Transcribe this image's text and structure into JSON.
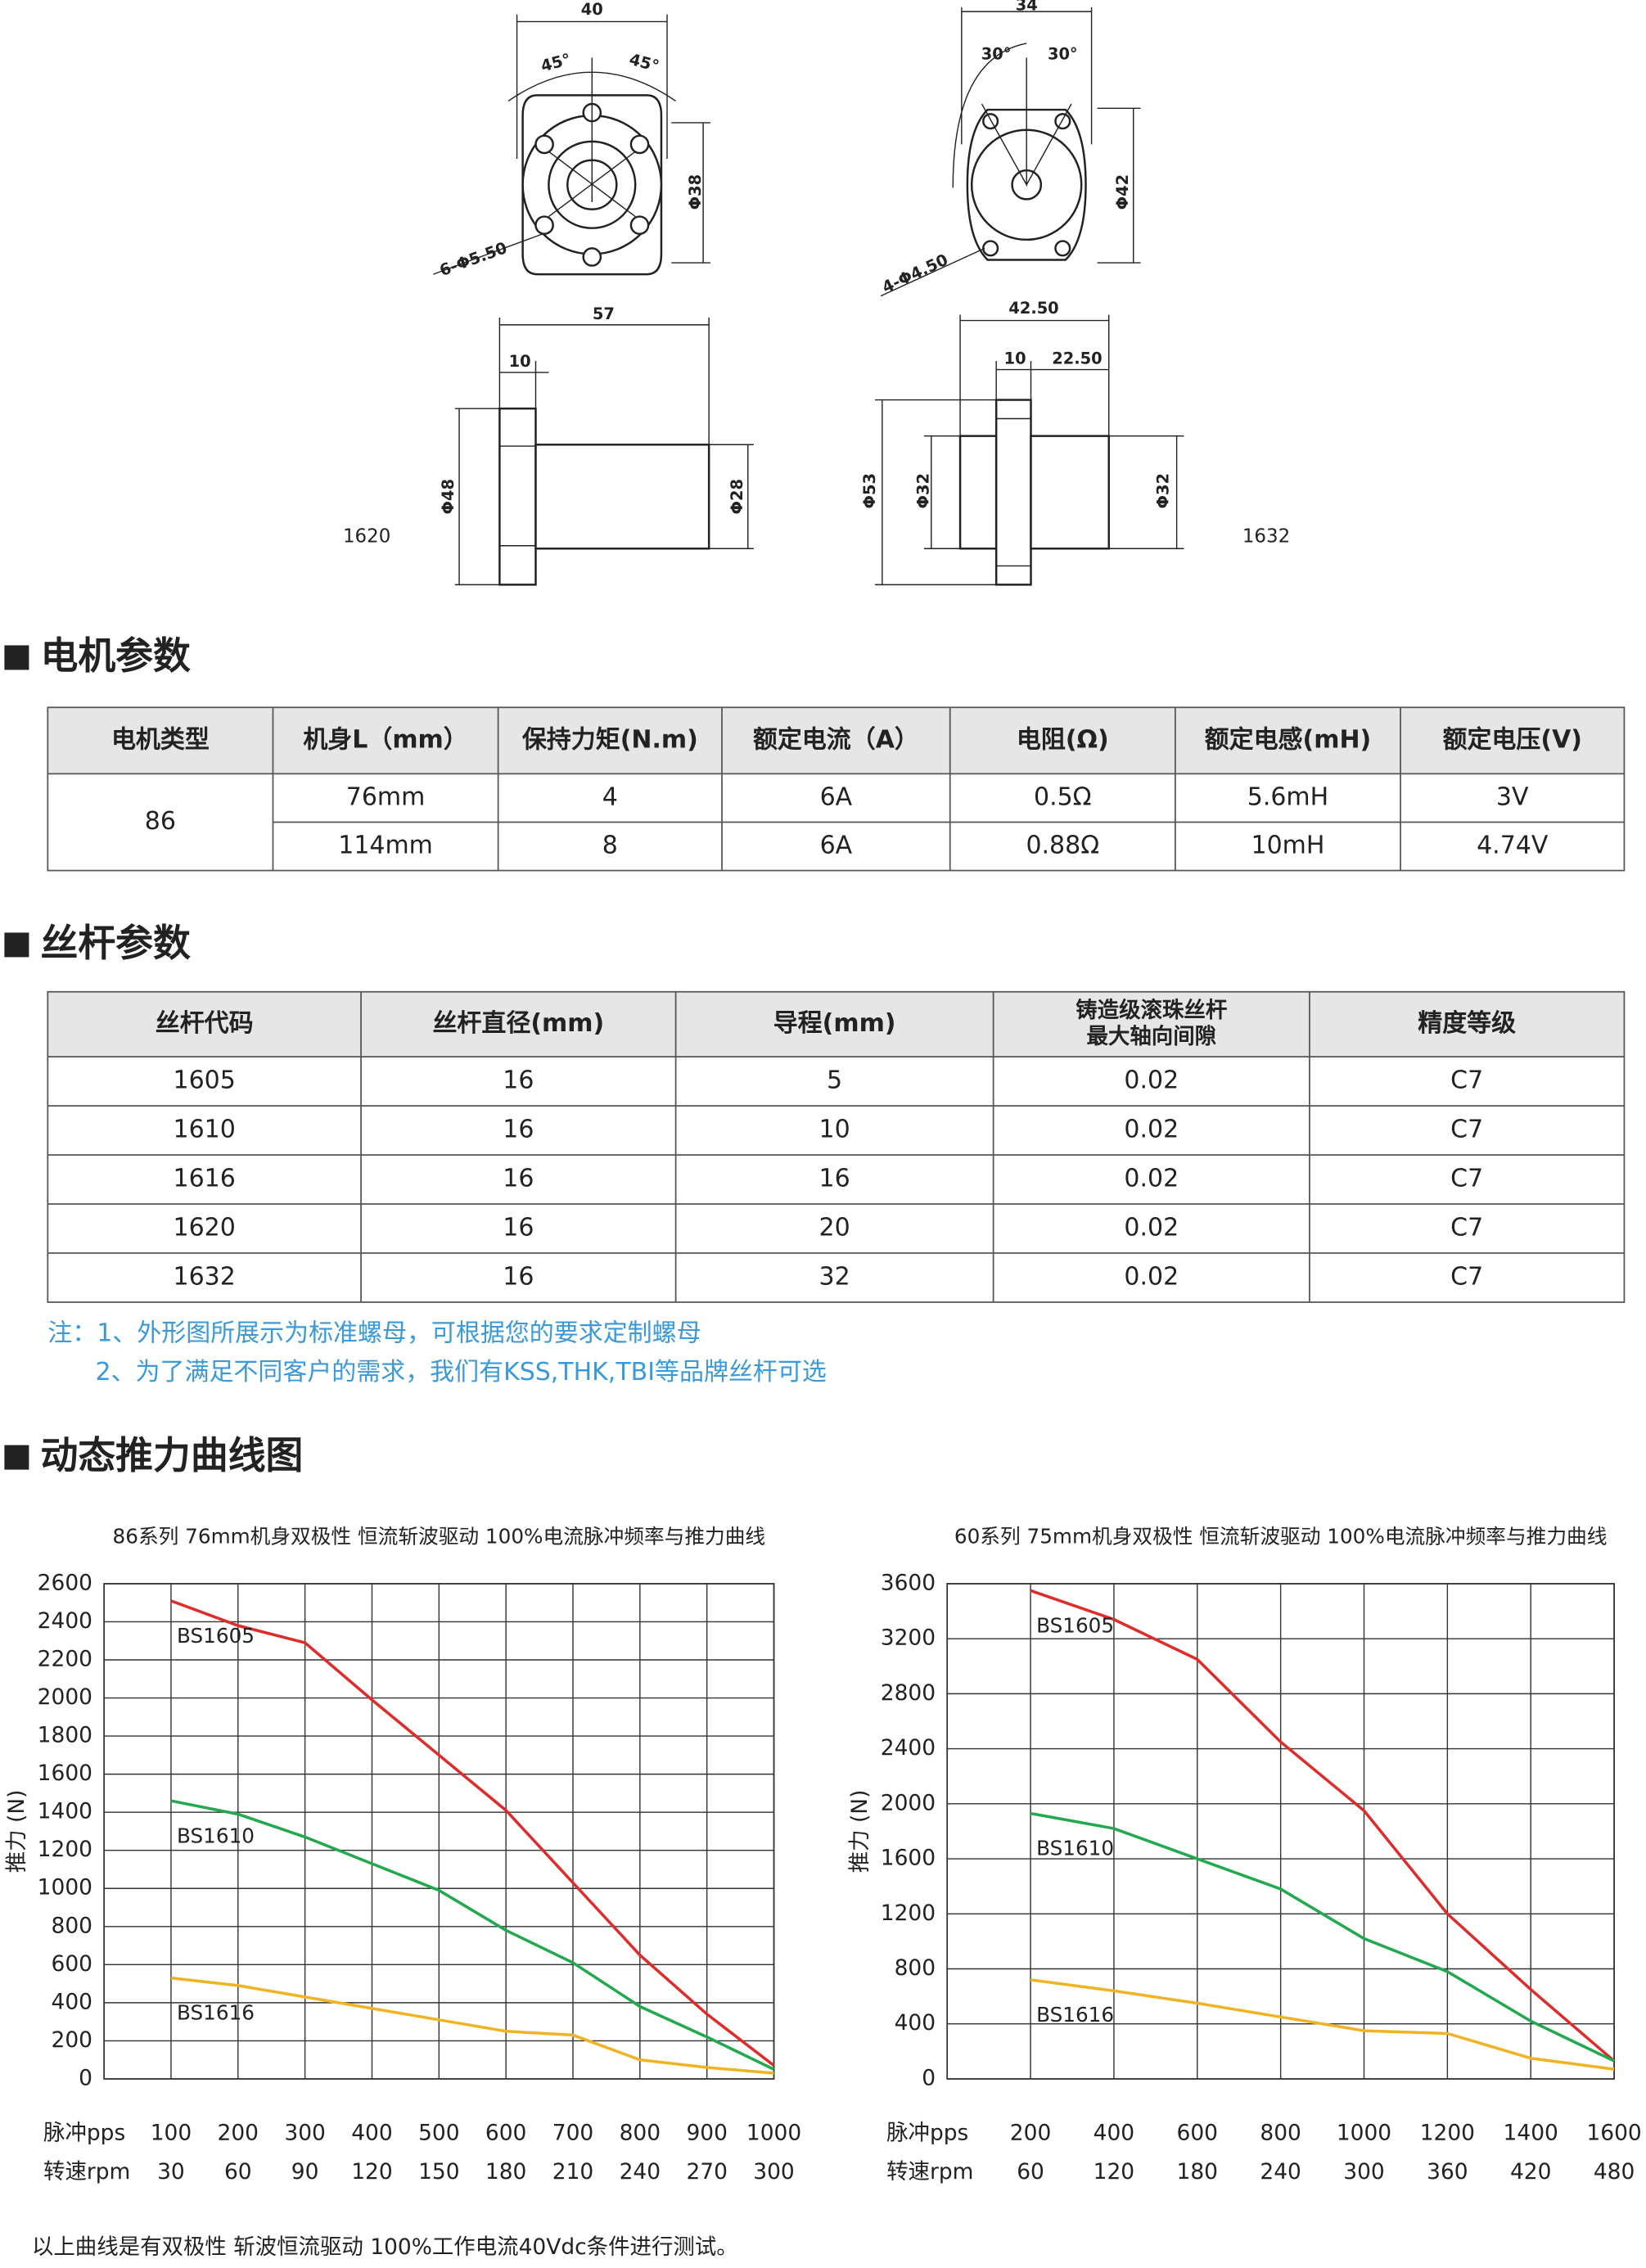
{
  "drawings": {
    "left": [
      "40",
      "45°",
      "45°",
      "Φ38",
      "6-Φ5.50",
      "57",
      "10",
      "Φ48",
      "Φ28",
      "1620"
    ],
    "right": [
      "34",
      "30°",
      "30°",
      "Φ42",
      "4-Φ4.50",
      "42.50",
      "10",
      "22.50",
      "Φ53",
      "Φ32",
      "Φ32",
      "1632"
    ]
  },
  "motor": {
    "heading": "电机参数",
    "header": [
      "电机类型",
      "机身L（mm）",
      "保持力矩(N.m)",
      "额定电流（A）",
      "电阻(Ω)",
      "额定电感(mH)",
      "额定电压(V)"
    ],
    "type": "86",
    "rows": [
      [
        "76mm",
        "4",
        "6A",
        "0.5Ω",
        "5.6mH",
        "3V"
      ],
      [
        "114mm",
        "8",
        "6A",
        "0.88Ω",
        "10mH",
        "4.74V"
      ]
    ]
  },
  "screw": {
    "heading": "丝杆参数",
    "header": [
      "丝杆代码",
      "丝杆直径(mm)",
      "导程(mm)",
      [
        "铸造级滚珠丝杆",
        "最大轴向间隙"
      ],
      "精度等级"
    ],
    "rows": [
      [
        "1605",
        "16",
        "5",
        "0.02",
        "C7"
      ],
      [
        "1610",
        "16",
        "10",
        "0.02",
        "C7"
      ],
      [
        "1616",
        "16",
        "16",
        "0.02",
        "C7"
      ],
      [
        "1620",
        "16",
        "20",
        "0.02",
        "C7"
      ],
      [
        "1632",
        "16",
        "32",
        "0.02",
        "C7"
      ]
    ]
  },
  "notes": [
    "注：1、外形图所展示为标准螺母，可根据您的要求定制螺母",
    "2、为了满足不同客户的需求，我们有KSS,THK,TBI等品牌丝杆可选"
  ],
  "curves_heading": "动态推力曲线图",
  "chart_data": [
    {
      "type": "line",
      "title": "86系列 76mm机身双极性 恒流斩波驱动 100%电流脉冲频率与推力曲线",
      "y_label": "推力 (N)",
      "x_label": "脉冲pps",
      "x2_label": "转速rpm",
      "x": [
        100,
        200,
        300,
        400,
        500,
        600,
        700,
        800,
        900,
        1000
      ],
      "xlim": [
        0,
        1000
      ],
      "xticks": [
        100,
        200,
        300,
        400,
        500,
        600,
        700,
        800,
        900,
        1000
      ],
      "x2ticks": [
        30,
        60,
        90,
        120,
        150,
        180,
        210,
        240,
        270,
        300
      ],
      "ylim": [
        0,
        2600
      ],
      "yticks": [
        0,
        200,
        400,
        600,
        800,
        1000,
        1200,
        1400,
        1600,
        1800,
        2000,
        2200,
        2400,
        2600
      ],
      "grid": true,
      "series": [
        {
          "name": "BS1605",
          "color": "#e02b2b",
          "values": [
            2510,
            2380,
            2290,
            1990,
            1700,
            1410,
            1030,
            650,
            340,
            70
          ]
        },
        {
          "name": "BS1610",
          "color": "#22a94f",
          "values": [
            1460,
            1390,
            1270,
            1130,
            990,
            780,
            610,
            380,
            220,
            50
          ]
        },
        {
          "name": "BS1616",
          "color": "#f0b323",
          "values": [
            530,
            490,
            430,
            370,
            310,
            250,
            230,
            100,
            60,
            30
          ]
        }
      ]
    },
    {
      "type": "line",
      "title": "60系列 75mm机身双极性 恒流斩波驱动 100%电流脉冲频率与推力曲线",
      "y_label": "推力 (N)",
      "x_label": "脉冲pps",
      "x2_label": "转速rpm",
      "x": [
        200,
        400,
        600,
        800,
        1000,
        1200,
        1400,
        1600
      ],
      "xlim": [
        0,
        1600
      ],
      "xticks": [
        200,
        400,
        600,
        800,
        1000,
        1200,
        1400,
        1600
      ],
      "x2ticks": [
        60,
        120,
        180,
        240,
        300,
        360,
        420,
        480
      ],
      "ylim": [
        0,
        3600
      ],
      "yticks": [
        0,
        400,
        800,
        1200,
        1600,
        2000,
        2400,
        2800,
        3200,
        3600
      ],
      "grid": true,
      "series": [
        {
          "name": "BS1605",
          "color": "#e02b2b",
          "values": [
            3550,
            3340,
            3050,
            2450,
            1950,
            1200,
            650,
            130
          ]
        },
        {
          "name": "BS1610",
          "color": "#22a94f",
          "values": [
            1930,
            1820,
            1600,
            1380,
            1020,
            780,
            420,
            130
          ]
        },
        {
          "name": "BS1616",
          "color": "#f0b323",
          "values": [
            720,
            640,
            550,
            450,
            350,
            330,
            150,
            70
          ]
        }
      ]
    }
  ],
  "footer": "以上曲线是有双极性 斩波恒流驱动 100%工作电流40Vdc条件进行测试。"
}
